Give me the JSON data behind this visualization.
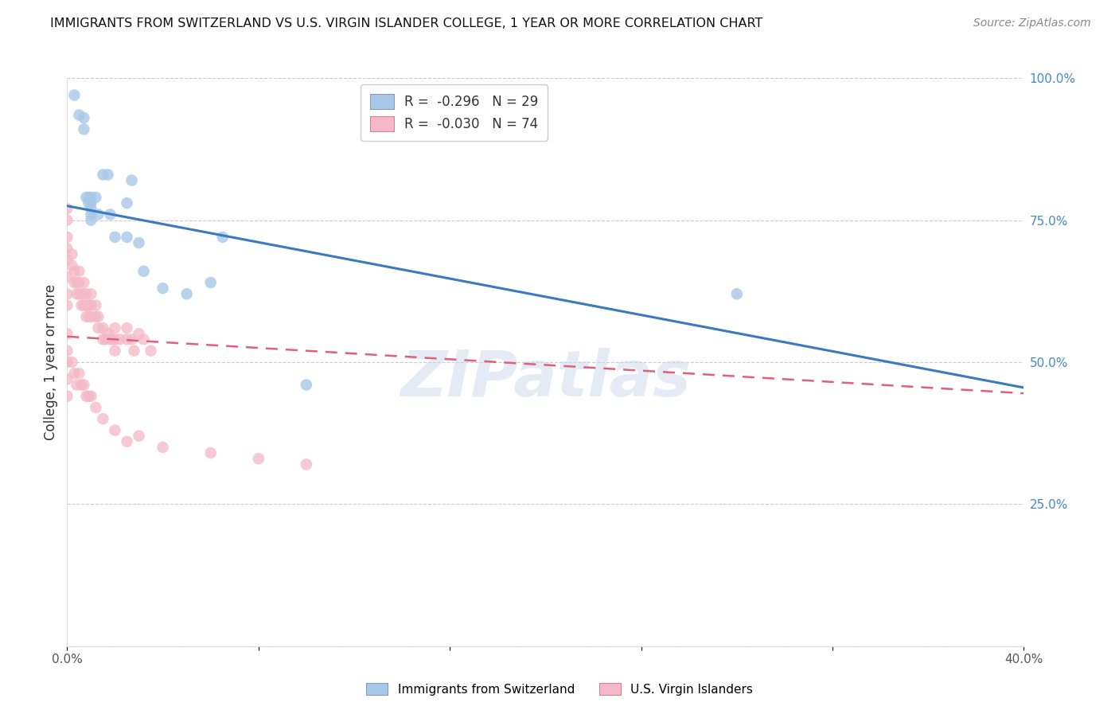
{
  "title": "IMMIGRANTS FROM SWITZERLAND VS U.S. VIRGIN ISLANDER COLLEGE, 1 YEAR OR MORE CORRELATION CHART",
  "source": "Source: ZipAtlas.com",
  "ylabel": "College, 1 year or more",
  "xmin": 0.0,
  "xmax": 0.4,
  "ymin": 0.0,
  "ymax": 1.0,
  "right_yticks": [
    0.0,
    0.25,
    0.5,
    0.75,
    1.0
  ],
  "right_yticklabels": [
    "",
    "25.0%",
    "50.0%",
    "75.0%",
    "100.0%"
  ],
  "xticks": [
    0.0,
    0.08,
    0.16,
    0.24,
    0.32,
    0.4
  ],
  "xticklabels": [
    "0.0%",
    "",
    "",
    "",
    "",
    "40.0%"
  ],
  "legend_blue_label": "R =  -0.296   N = 29",
  "legend_pink_label": "R =  -0.030   N = 74",
  "blue_color": "#a8c8e8",
  "pink_color": "#f4b8c8",
  "trendline_blue_color": "#3a7abf",
  "trendline_pink_color": "#e0607a",
  "watermark": "ZIPatlas",
  "blue_scatter_x": [
    0.003,
    0.005,
    0.007,
    0.007,
    0.008,
    0.009,
    0.009,
    0.01,
    0.01,
    0.01,
    0.01,
    0.01,
    0.012,
    0.013,
    0.015,
    0.017,
    0.018,
    0.02,
    0.025,
    0.025,
    0.027,
    0.03,
    0.032,
    0.04,
    0.05,
    0.06,
    0.065,
    0.1,
    0.28
  ],
  "blue_scatter_y": [
    0.97,
    0.935,
    0.93,
    0.91,
    0.79,
    0.79,
    0.78,
    0.79,
    0.78,
    0.77,
    0.76,
    0.75,
    0.79,
    0.76,
    0.83,
    0.83,
    0.76,
    0.72,
    0.78,
    0.72,
    0.82,
    0.71,
    0.66,
    0.63,
    0.62,
    0.64,
    0.72,
    0.46,
    0.62
  ],
  "pink_scatter_x": [
    0.0,
    0.0,
    0.0,
    0.0,
    0.0,
    0.0,
    0.0,
    0.0,
    0.002,
    0.002,
    0.003,
    0.003,
    0.004,
    0.004,
    0.005,
    0.005,
    0.005,
    0.006,
    0.006,
    0.007,
    0.007,
    0.007,
    0.008,
    0.008,
    0.008,
    0.009,
    0.009,
    0.01,
    0.01,
    0.01,
    0.012,
    0.012,
    0.013,
    0.013,
    0.015,
    0.015,
    0.016,
    0.017,
    0.018,
    0.019,
    0.02,
    0.02,
    0.02,
    0.022,
    0.025,
    0.025,
    0.027,
    0.028,
    0.03,
    0.032,
    0.035
  ],
  "pink_scatter_y": [
    0.77,
    0.75,
    0.72,
    0.7,
    0.68,
    0.65,
    0.62,
    0.6,
    0.69,
    0.67,
    0.66,
    0.64,
    0.64,
    0.62,
    0.66,
    0.64,
    0.62,
    0.62,
    0.6,
    0.64,
    0.62,
    0.6,
    0.62,
    0.6,
    0.58,
    0.6,
    0.58,
    0.62,
    0.6,
    0.58,
    0.6,
    0.58,
    0.58,
    0.56,
    0.56,
    0.54,
    0.54,
    0.55,
    0.54,
    0.54,
    0.56,
    0.54,
    0.52,
    0.54,
    0.56,
    0.54,
    0.54,
    0.52,
    0.55,
    0.54,
    0.52
  ],
  "pink_scatter_x2": [
    0.0,
    0.0,
    0.0,
    0.0,
    0.0,
    0.002,
    0.003,
    0.004,
    0.005,
    0.006,
    0.007,
    0.008,
    0.009,
    0.01,
    0.012,
    0.015,
    0.02,
    0.025,
    0.03,
    0.04,
    0.06,
    0.08,
    0.1
  ],
  "pink_scatter_y2": [
    0.55,
    0.52,
    0.5,
    0.47,
    0.44,
    0.5,
    0.48,
    0.46,
    0.48,
    0.46,
    0.46,
    0.44,
    0.44,
    0.44,
    0.42,
    0.4,
    0.38,
    0.36,
    0.37,
    0.35,
    0.34,
    0.33,
    0.32
  ],
  "blue_trend_x": [
    0.0,
    0.4
  ],
  "blue_trend_y": [
    0.775,
    0.455
  ],
  "pink_trend_x": [
    0.0,
    0.4
  ],
  "pink_trend_y": [
    0.545,
    0.445
  ],
  "grid_color": "#cccccc",
  "background_color": "#ffffff"
}
